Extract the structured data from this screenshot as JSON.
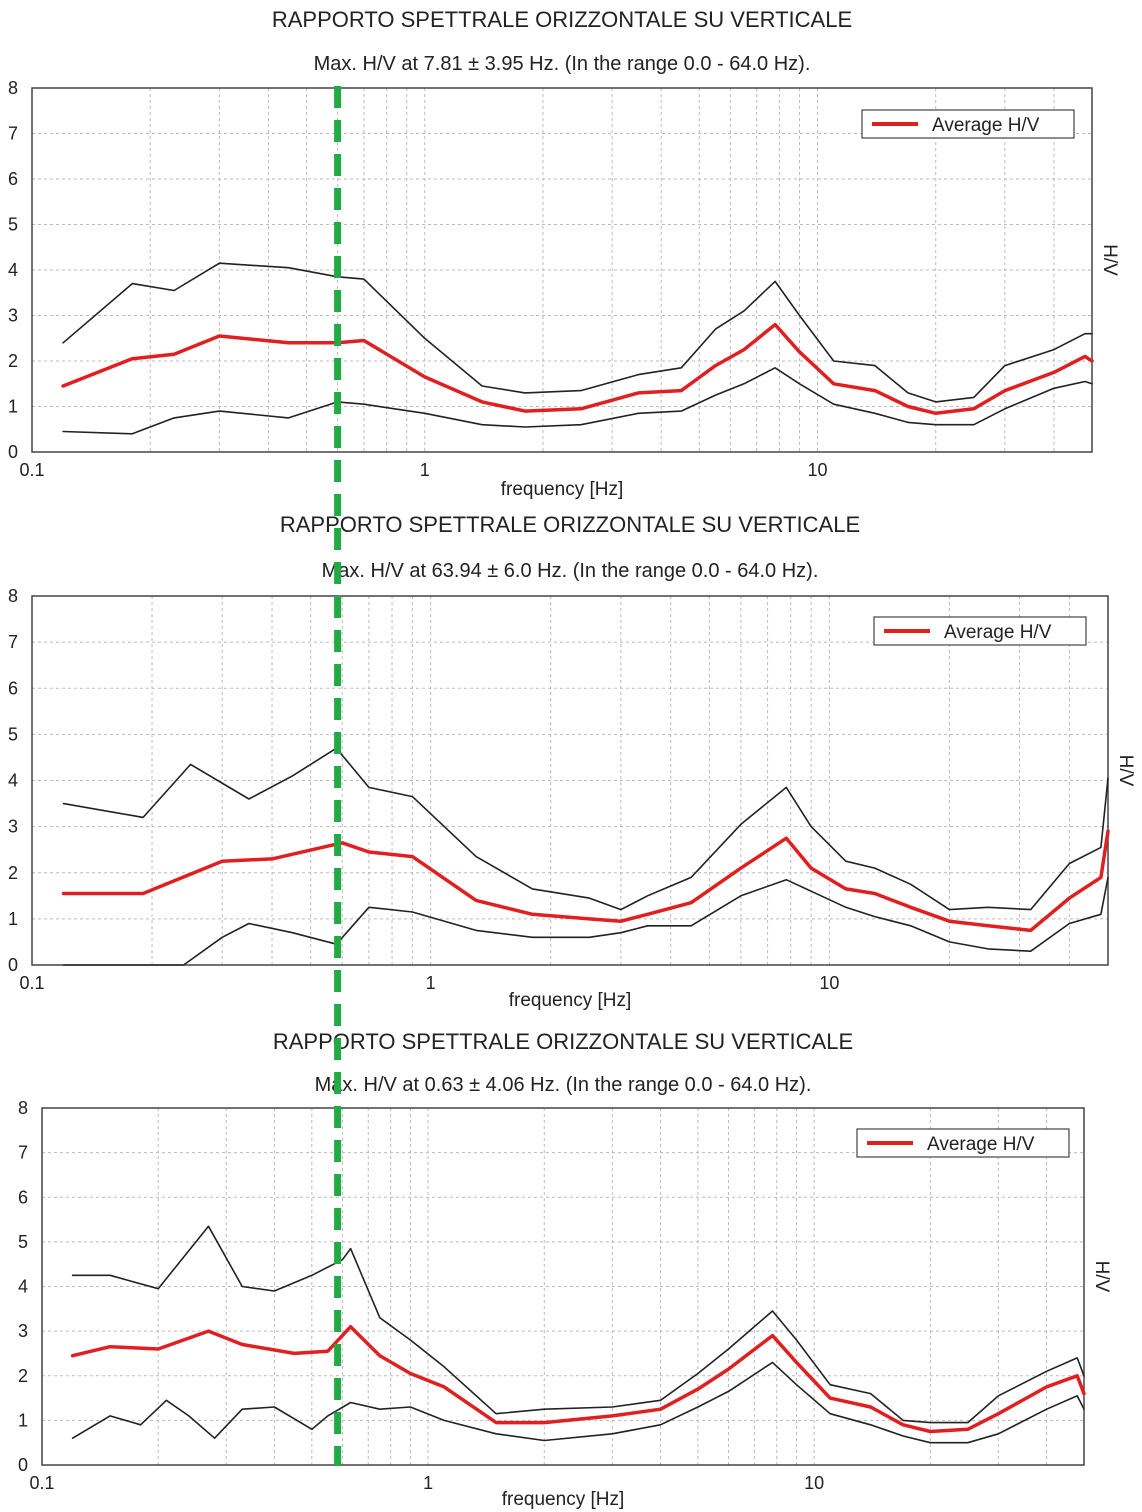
{
  "chart_data": [
    {
      "type": "line",
      "title": "RAPPORTO SPETTRALE ORIZZONTALE SU VERTICALE",
      "subtitle": "Max. H/V at 7.81 ± 3.95 Hz. (In the range 0.0 - 64.0 Hz).",
      "xlabel": "frequency [Hz]",
      "ylabel": "H/V",
      "x_scale": "log",
      "xlim": [
        0.1,
        50
      ],
      "ylim": [
        0,
        8
      ],
      "x_ticks": [
        "0.1",
        "1",
        "10"
      ],
      "y_ticks": [
        "0",
        "1",
        "2",
        "3",
        "4",
        "5",
        "6",
        "7",
        "8"
      ],
      "grid": true,
      "legend": {
        "position": "top-right",
        "entries": [
          "Average H/V"
        ]
      },
      "series": [
        {
          "name": "Average H/V",
          "color": "#e02020",
          "x": [
            0.12,
            0.18,
            0.23,
            0.3,
            0.45,
            0.6,
            0.7,
            1.0,
            1.4,
            1.8,
            2.5,
            3.5,
            4.5,
            5.5,
            6.5,
            7.8,
            9,
            11,
            14,
            17,
            20,
            25,
            30,
            40,
            48,
            50
          ],
          "y": [
            1.45,
            2.05,
            2.15,
            2.55,
            2.4,
            2.4,
            2.45,
            1.65,
            1.1,
            0.9,
            0.95,
            1.3,
            1.35,
            1.9,
            2.25,
            2.8,
            2.2,
            1.5,
            1.35,
            1.0,
            0.85,
            0.95,
            1.35,
            1.75,
            2.1,
            2.0
          ]
        },
        {
          "color": "#222222",
          "x": [
            0.12,
            0.18,
            0.23,
            0.3,
            0.45,
            0.6,
            0.7,
            1.0,
            1.4,
            1.8,
            2.5,
            3.5,
            4.5,
            5.5,
            6.5,
            7.8,
            9,
            11,
            14,
            17,
            20,
            25,
            30,
            40,
            48,
            50
          ],
          "y": [
            2.4,
            3.7,
            3.55,
            4.15,
            4.05,
            3.85,
            3.8,
            2.5,
            1.45,
            1.3,
            1.35,
            1.7,
            1.85,
            2.7,
            3.1,
            3.75,
            3.0,
            2.0,
            1.9,
            1.3,
            1.1,
            1.2,
            1.9,
            2.25,
            2.6,
            2.6
          ]
        },
        {
          "color": "#222222",
          "x": [
            0.12,
            0.18,
            0.23,
            0.3,
            0.45,
            0.6,
            0.7,
            1.0,
            1.4,
            1.8,
            2.5,
            3.5,
            4.5,
            5.5,
            6.5,
            7.8,
            9,
            11,
            14,
            17,
            20,
            25,
            30,
            40,
            48,
            50
          ],
          "y": [
            0.45,
            0.4,
            0.75,
            0.9,
            0.75,
            1.1,
            1.05,
            0.85,
            0.6,
            0.55,
            0.6,
            0.85,
            0.9,
            1.25,
            1.5,
            1.85,
            1.5,
            1.05,
            0.85,
            0.65,
            0.6,
            0.6,
            0.95,
            1.4,
            1.55,
            1.5
          ]
        }
      ]
    },
    {
      "type": "line",
      "title": "RAPPORTO SPETTRALE ORIZZONTALE SU VERTICALE",
      "subtitle": "Max. H/V at 63.94 ± 6.0 Hz. (In the range 0.0 - 64.0 Hz).",
      "xlabel": "frequency [Hz]",
      "ylabel": "H/V",
      "x_scale": "log",
      "xlim": [
        0.1,
        50
      ],
      "ylim": [
        0,
        8
      ],
      "x_ticks": [
        "0.1",
        "1",
        "10"
      ],
      "y_ticks": [
        "0",
        "1",
        "2",
        "3",
        "4",
        "5",
        "6",
        "7",
        "8"
      ],
      "grid": true,
      "legend": {
        "position": "top-right",
        "entries": [
          "Average H/V"
        ]
      },
      "series": [
        {
          "name": "Average H/V",
          "color": "#e02020",
          "x": [
            0.12,
            0.19,
            0.3,
            0.4,
            0.6,
            0.7,
            0.9,
            1.3,
            1.8,
            2.5,
            3.0,
            3.5,
            4.5,
            6,
            7.8,
            9,
            11,
            13,
            16,
            20,
            25,
            32,
            40,
            48,
            50
          ],
          "y": [
            1.55,
            1.55,
            2.25,
            2.3,
            2.65,
            2.45,
            2.35,
            1.4,
            1.1,
            1.0,
            0.95,
            1.1,
            1.35,
            2.1,
            2.75,
            2.1,
            1.65,
            1.55,
            1.25,
            0.95,
            0.85,
            0.75,
            1.45,
            1.9,
            2.9
          ]
        },
        {
          "color": "#222222",
          "x": [
            0.12,
            0.19,
            0.25,
            0.35,
            0.45,
            0.58,
            0.7,
            0.9,
            1.3,
            1.8,
            2.5,
            3.0,
            3.5,
            4.5,
            6,
            7.8,
            9,
            11,
            13,
            16,
            20,
            25,
            32,
            40,
            48,
            50
          ],
          "y": [
            3.5,
            3.2,
            4.35,
            3.6,
            4.1,
            4.7,
            3.85,
            3.65,
            2.35,
            1.65,
            1.45,
            1.2,
            1.5,
            1.9,
            3.05,
            3.85,
            3.0,
            2.25,
            2.1,
            1.75,
            1.2,
            1.25,
            1.2,
            2.2,
            2.55,
            4.05
          ]
        },
        {
          "color": "#222222",
          "x": [
            0.12,
            0.24,
            0.3,
            0.35,
            0.45,
            0.58,
            0.7,
            0.9,
            1.3,
            1.8,
            2.5,
            3.0,
            3.5,
            4.5,
            6,
            7.8,
            9,
            11,
            13,
            16,
            20,
            25,
            32,
            40,
            48,
            50
          ],
          "y": [
            0.0,
            0.0,
            0.6,
            0.9,
            0.7,
            0.45,
            1.25,
            1.15,
            0.75,
            0.6,
            0.6,
            0.7,
            0.85,
            0.85,
            1.5,
            1.85,
            1.6,
            1.25,
            1.05,
            0.85,
            0.5,
            0.35,
            0.3,
            0.9,
            1.1,
            1.9
          ]
        }
      ]
    },
    {
      "type": "line",
      "title": "RAPPORTO SPETTRALE ORIZZONTALE SU VERTICALE",
      "subtitle": "Max. H/V at 0.63 ± 4.06 Hz. (In the range 0.0 - 64.0 Hz).",
      "xlabel": "frequency [Hz]",
      "ylabel": "H/V",
      "x_scale": "log",
      "xlim": [
        0.1,
        50
      ],
      "ylim": [
        0,
        8
      ],
      "x_ticks": [
        "0.1",
        "1",
        "10"
      ],
      "y_ticks": [
        "0",
        "1",
        "2",
        "3",
        "4",
        "5",
        "6",
        "7",
        "8"
      ],
      "grid": true,
      "legend": {
        "position": "top-right",
        "entries": [
          "Average H/V"
        ]
      },
      "series": [
        {
          "name": "Average H/V",
          "color": "#e02020",
          "x": [
            0.12,
            0.15,
            0.2,
            0.27,
            0.33,
            0.45,
            0.55,
            0.63,
            0.75,
            0.9,
            1.1,
            1.5,
            2.0,
            3.0,
            4.0,
            5.0,
            6.0,
            7.8,
            9,
            11,
            14,
            17,
            20,
            25,
            30,
            40,
            48,
            50
          ],
          "y": [
            2.45,
            2.65,
            2.6,
            3.0,
            2.7,
            2.5,
            2.55,
            3.1,
            2.45,
            2.05,
            1.75,
            0.95,
            0.95,
            1.1,
            1.25,
            1.7,
            2.15,
            2.9,
            2.3,
            1.5,
            1.3,
            0.9,
            0.75,
            0.8,
            1.15,
            1.75,
            2.0,
            1.6
          ]
        },
        {
          "color": "#222222",
          "x": [
            0.12,
            0.15,
            0.2,
            0.27,
            0.33,
            0.4,
            0.5,
            0.6,
            0.63,
            0.75,
            0.9,
            1.1,
            1.5,
            2.0,
            3.0,
            4.0,
            5.0,
            6.0,
            7.8,
            9,
            11,
            14,
            17,
            20,
            25,
            30,
            40,
            48,
            50
          ],
          "y": [
            4.25,
            4.25,
            3.95,
            5.35,
            4.0,
            3.9,
            4.25,
            4.6,
            4.85,
            3.3,
            2.8,
            2.2,
            1.15,
            1.25,
            1.3,
            1.45,
            2.05,
            2.6,
            3.45,
            2.8,
            1.8,
            1.6,
            1.0,
            0.95,
            0.95,
            1.55,
            2.1,
            2.4,
            2.0
          ]
        },
        {
          "color": "#222222",
          "x": [
            0.12,
            0.15,
            0.18,
            0.21,
            0.24,
            0.28,
            0.33,
            0.4,
            0.5,
            0.55,
            0.63,
            0.75,
            0.9,
            1.1,
            1.5,
            2.0,
            3.0,
            4.0,
            5.0,
            6.0,
            7.8,
            9,
            11,
            14,
            17,
            20,
            25,
            30,
            40,
            48,
            50
          ],
          "y": [
            0.6,
            1.1,
            0.9,
            1.45,
            1.1,
            0.6,
            1.25,
            1.3,
            0.8,
            1.1,
            1.4,
            1.25,
            1.3,
            1.0,
            0.7,
            0.55,
            0.7,
            0.9,
            1.3,
            1.65,
            2.3,
            1.8,
            1.15,
            0.9,
            0.65,
            0.5,
            0.5,
            0.7,
            1.25,
            1.55,
            1.25
          ]
        }
      ]
    }
  ],
  "overlay": {
    "reference_line_color": "#22aa44",
    "reference_frequency": 0.6
  }
}
